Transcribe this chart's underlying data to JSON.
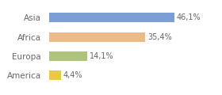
{
  "categories": [
    "America",
    "Europa",
    "Africa",
    "Asia"
  ],
  "values": [
    4.4,
    14.1,
    35.4,
    46.1
  ],
  "labels": [
    "4,4%",
    "14,1%",
    "35,4%",
    "46,1%"
  ],
  "colors": [
    "#e8c84a",
    "#adc47a",
    "#e8bb88",
    "#7b9fd4"
  ],
  "background_color": "#ffffff",
  "xlim": [
    0,
    62
  ],
  "bar_height": 0.5,
  "label_fontsize": 7.0,
  "tick_fontsize": 7.5
}
